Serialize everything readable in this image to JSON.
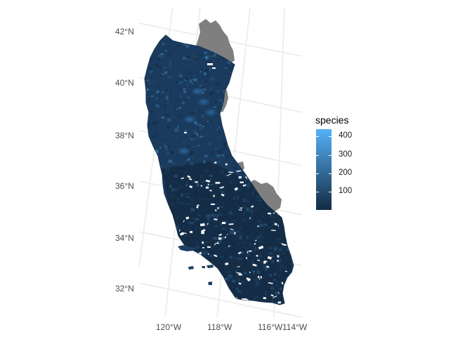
{
  "map": {
    "y_axis_labels": [
      "42°N",
      "40°N",
      "38°N",
      "36°N",
      "34°N",
      "32°N"
    ],
    "x_axis_labels": [
      "120°W",
      "118°W",
      "116°W",
      "114°W"
    ],
    "no_data_color": "#7f7f7f",
    "graticule_color": "#ebebeb"
  },
  "legend": {
    "title": "species",
    "ticks": [
      "400",
      "300",
      "200",
      "100"
    ],
    "tick_values": [
      400,
      300,
      200,
      100
    ],
    "range": [
      0,
      440
    ],
    "low_color": "#132b43",
    "high_color": "#56b1f7"
  }
}
